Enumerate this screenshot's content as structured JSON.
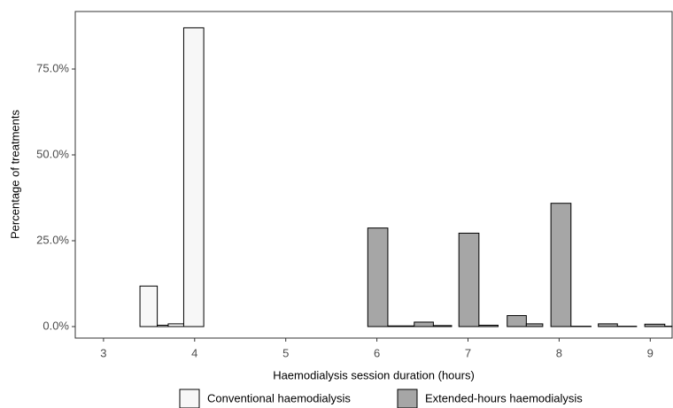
{
  "chart_data": {
    "type": "histogram",
    "x_label": "Haemodialysis session duration (hours)",
    "y_label": "Percentage of treatments",
    "xlim": [
      2.69,
      9.24
    ],
    "ylim": [
      -3.35,
      91.75
    ],
    "xticks": [
      3,
      4,
      5,
      6,
      7,
      8,
      9
    ],
    "yticks": [
      {
        "value": 0,
        "label": "0.0%"
      },
      {
        "value": 25,
        "label": "25.0%"
      },
      {
        "value": 50,
        "label": "50.0%"
      },
      {
        "value": 75,
        "label": "75.0%"
      }
    ],
    "legend": "bottom",
    "series": [
      {
        "name": "Conventional haemodialysis",
        "color": "#f7f7f7",
        "bins": [
          3.4,
          3.59,
          3.71,
          3.88,
          4.1
        ],
        "values": [
          11.8,
          0.4,
          0.8,
          87
        ]
      },
      {
        "name": "Extended-hours haemodialysis",
        "color": "#a6a6a6",
        "bins": [
          5.9,
          6.12,
          6.41,
          6.62,
          6.82,
          6.9,
          7.12,
          7.33,
          7.43,
          7.64,
          7.82,
          7.91,
          8.13,
          8.35,
          8.43,
          8.64,
          8.85,
          8.94,
          9.16,
          9.24
        ],
        "values": [
          28.7,
          0.2,
          1.3,
          0.3,
          0,
          27.2,
          0.4,
          0,
          3.2,
          0.8,
          0,
          35.9,
          0.1,
          0,
          0.8,
          0.1,
          0,
          0.7,
          0.1
        ]
      }
    ]
  }
}
